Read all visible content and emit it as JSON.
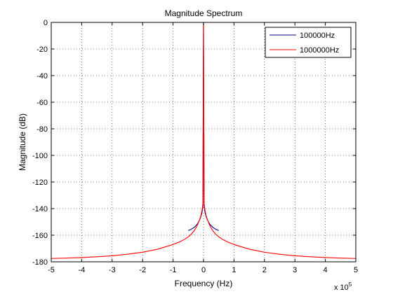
{
  "chart_data": {
    "type": "line",
    "title": "Magnitude Spectrum",
    "xlabel": "Frequency (Hz)",
    "ylabel": "Magnitude (dB)",
    "x_multiplier": "x 10",
    "x_multiplier_exp": "5",
    "xlim": [
      -5,
      5
    ],
    "ylim": [
      -180,
      0
    ],
    "xticks": [
      -5,
      -4,
      -3,
      -2,
      -1,
      0,
      1,
      2,
      3,
      4,
      5
    ],
    "yticks": [
      0,
      -20,
      -40,
      -60,
      -80,
      -100,
      -120,
      -140,
      -160,
      -180
    ],
    "grid": true,
    "legend_position": "top-right",
    "series": [
      {
        "name": "100000Hz",
        "color": "#00008b",
        "x": [
          -0.5,
          -0.4,
          -0.3,
          -0.2,
          -0.15,
          -0.1,
          -0.05,
          -0.02,
          0,
          0.02,
          0.05,
          0.1,
          0.15,
          0.2,
          0.3,
          0.4,
          0.5
        ],
        "y": [
          -156.5,
          -155.5,
          -154,
          -151.5,
          -149.5,
          -147,
          -143,
          -138,
          0,
          -138,
          -143,
          -147,
          -149.5,
          -151.5,
          -154,
          -155.5,
          -156.5
        ]
      },
      {
        "name": "1000000Hz",
        "color": "#ff0000",
        "x": [
          -5,
          -4.5,
          -4,
          -3.5,
          -3,
          -2.5,
          -2,
          -1.5,
          -1,
          -0.8,
          -0.6,
          -0.5,
          -0.4,
          -0.3,
          -0.2,
          -0.1,
          -0.05,
          -0.02,
          0,
          0.02,
          0.05,
          0.1,
          0.2,
          0.3,
          0.4,
          0.5,
          0.6,
          0.8,
          1,
          1.5,
          2,
          2.5,
          3,
          3.5,
          4,
          4.5,
          5
        ],
        "y": [
          -177.5,
          -177.2,
          -176.8,
          -176.2,
          -175.5,
          -174.3,
          -172.8,
          -170.5,
          -167,
          -165.2,
          -162.8,
          -161.2,
          -159.2,
          -156.5,
          -152.5,
          -146.5,
          -141.5,
          -136,
          0,
          -136,
          -141.5,
          -146.5,
          -152.5,
          -156.5,
          -159.2,
          -161.2,
          -162.8,
          -165.2,
          -167,
          -170.5,
          -172.8,
          -174.3,
          -175.5,
          -176.2,
          -176.8,
          -177.2,
          -177.5
        ]
      }
    ]
  }
}
